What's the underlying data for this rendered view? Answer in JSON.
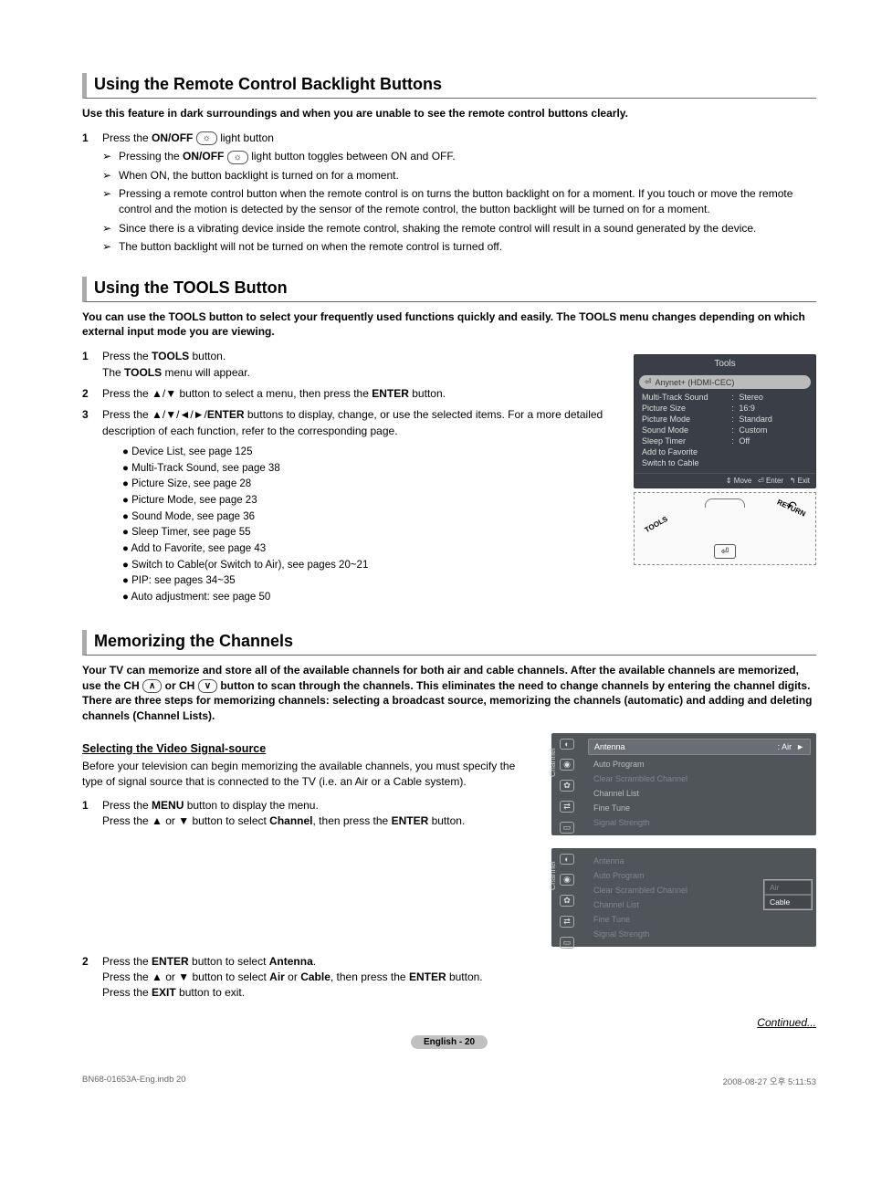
{
  "sec1": {
    "title": "Using the Remote Control Backlight Buttons",
    "intro": "Use this feature in dark surroundings and when you are unable to see the remote control buttons clearly.",
    "step1_pre": "Press the ",
    "step1_bold": "ON/OFF",
    "step1_post": " light button",
    "s1_pre": "Pressing the ",
    "s1_bold": "ON/OFF",
    "s1_post": " light button toggles between ON and OFF.",
    "s2": "When ON, the button backlight is turned on for a moment.",
    "s3": "Pressing a remote control button when the remote control is on turns the button backlight on for a moment. If you touch or move the remote control and the motion is detected by the sensor of the remote control, the button backlight will be turned on for a moment.",
    "s4": "Since there is a vibrating device inside the remote control, shaking the remote control will result in a sound generated by the device.",
    "s5": "The button backlight will not be turned on when the remote control is turned off."
  },
  "sec2": {
    "title": "Using the TOOLS Button",
    "intro": "You can use the TOOLS button to select your frequently used functions quickly and easily. The TOOLS menu changes depending on which external input mode you are viewing.",
    "st1a": "Press the ",
    "st1b": "TOOLS",
    "st1c": " button.",
    "st1d": "The ",
    "st1e": "TOOLS",
    "st1f": " menu will appear.",
    "st2a": "Press the ▲/▼ button to select a menu, then press the ",
    "st2b": "ENTER",
    "st2c": " button.",
    "st3a": "Press the ▲/▼/◄/►/",
    "st3b": "ENTER",
    "st3c": " buttons to display, change, or use the selected items. For a more detailed description of each function, refer to the corresponding page.",
    "bullets": [
      "Device List, see page 125",
      "Multi-Track Sound, see page 38",
      "Picture Size, see page 28",
      "Picture Mode, see page 23",
      "Sound Mode, see page 36",
      "Sleep Timer, see page 55",
      "Add to Favorite, see page 43",
      "Switch to Cable(or Switch to Air), see pages 20~21",
      "PIP: see pages 34~35",
      "Auto adjustment: see page 50"
    ]
  },
  "osd": {
    "title": "Tools",
    "anynet": "Anynet+ (HDMI-CEC)",
    "rows": [
      {
        "k": "Multi-Track Sound",
        "v": "Stereo"
      },
      {
        "k": "Picture Size",
        "v": "16:9"
      },
      {
        "k": "Picture Mode",
        "v": "Standard"
      },
      {
        "k": "Sound Mode",
        "v": "Custom"
      },
      {
        "k": "Sleep Timer",
        "v": "Off"
      }
    ],
    "extra1": "Add to Favorite",
    "extra2": "Switch to Cable",
    "foot_move": "Move",
    "foot_enter": "Enter",
    "foot_exit": "Exit"
  },
  "remote": {
    "tools": "TOOLS",
    "return": "RETURN"
  },
  "sec3": {
    "title": "Memorizing the Channels",
    "intro_a": "Your TV can memorize and store all of the available channels for both air and cable channels. After the available channels are memorized, use the CH ",
    "intro_b": " or CH ",
    "intro_c": " button to scan through the channels. This eliminates the need to change channels by entering the channel digits. There are three steps for memorizing channels: selecting a broadcast source, memorizing the channels (automatic) and adding and deleting channels (Channel Lists).",
    "subhead": "Selecting the Video Signal-source",
    "para": "Before your television can begin memorizing the available channels, you must specify the type of signal source that is connected to the TV (i.e. an Air or a Cable system).",
    "st1a": "Press the ",
    "st1b": "MENU",
    "st1c": " button to display the menu.",
    "st1d": "Press the ▲ or ▼ button to select ",
    "st1e": "Channel",
    "st1f": ", then press the ",
    "st1g": "ENTER",
    "st1h": " button.",
    "st2a": "Press the ",
    "st2b": "ENTER",
    "st2c": " button to select ",
    "st2d": "Antenna",
    "st2e": ".",
    "st2f": "Press the ▲ or ▼ button to select ",
    "st2g": "Air",
    "st2h": " or ",
    "st2i": "Cable",
    "st2j": ", then press the ",
    "st2k": "ENTER",
    "st2l": " button.",
    "st2m": "Press the ",
    "st2n": "EXIT",
    "st2o": " button to exit."
  },
  "menu1": {
    "side": "Channel",
    "antenna": "Antenna",
    "antenna_val": ": Air",
    "items": [
      "Auto Program",
      "Clear Scrambled Channel",
      "Channel List",
      "Fine Tune",
      "Signal Strength"
    ]
  },
  "menu2": {
    "side": "Channel",
    "items": [
      "Antenna",
      "Auto Program",
      "Clear Scrambled Channel",
      "Channel List",
      "Fine Tune",
      "Signal Strength"
    ],
    "pop1": "Air",
    "pop2": "Cable"
  },
  "continued": "Continued...",
  "pagenum": "English - 20",
  "footer_left": "BN68-01653A-Eng.indb   20",
  "footer_right": "2008-08-27   오후 5:11:53"
}
